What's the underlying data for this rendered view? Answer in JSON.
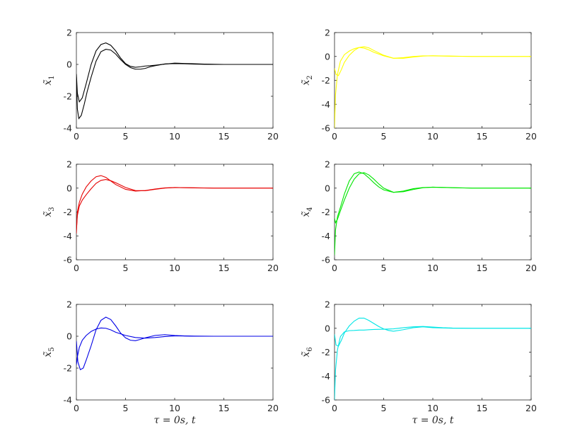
{
  "chart_data": [
    {
      "type": "line",
      "ylabel": "x̃",
      "ylabel_subscript": "1",
      "xlabel": "",
      "xlim": [
        0,
        20
      ],
      "ylim": [
        -4,
        2
      ],
      "xticks": [
        "0",
        "5",
        "10",
        "15",
        "20"
      ],
      "yticks": [
        "-4",
        "-2",
        "0",
        "2"
      ],
      "color": "#000000",
      "series": [
        {
          "x": [
            0,
            0.1,
            0.25,
            0.5,
            0.8,
            1.1,
            1.5,
            2,
            2.5,
            3,
            3.5,
            4,
            4.5,
            5,
            5.5,
            6,
            6.5,
            7,
            7.5,
            8,
            9,
            10,
            11,
            12,
            13,
            14,
            15,
            17,
            20
          ],
          "y": [
            -0.8,
            -2.8,
            -3.4,
            -3.2,
            -2.5,
            -1.7,
            -0.8,
            0.2,
            0.8,
            0.95,
            0.9,
            0.65,
            0.3,
            0,
            -0.2,
            -0.3,
            -0.3,
            -0.25,
            -0.15,
            -0.08,
            0.03,
            0.05,
            0.04,
            0.02,
            0.01,
            0,
            0,
            0,
            0
          ]
        },
        {
          "x": [
            0,
            0.1,
            0.3,
            0.6,
            1,
            1.5,
            2,
            2.5,
            3,
            3.5,
            4,
            4.5,
            5,
            5.5,
            6,
            6.5,
            7,
            7.5,
            8,
            9,
            10,
            11,
            12,
            13,
            14,
            15,
            17,
            20
          ],
          "y": [
            -0.6,
            -1.8,
            -2.35,
            -2.1,
            -1.2,
            0,
            0.85,
            1.25,
            1.35,
            1.2,
            0.85,
            0.4,
            0.05,
            -0.12,
            -0.18,
            -0.15,
            -0.1,
            -0.08,
            -0.05,
            0.02,
            0.08,
            0.06,
            0.04,
            0.02,
            0.01,
            0,
            0,
            0
          ]
        }
      ]
    },
    {
      "type": "line",
      "ylabel": "x̃",
      "ylabel_subscript": "2",
      "xlabel": "",
      "xlim": [
        0,
        20
      ],
      "ylim": [
        -6,
        2
      ],
      "xticks": [
        "0",
        "5",
        "10",
        "15",
        "20"
      ],
      "yticks": [
        "-6",
        "-4",
        "-2",
        "0",
        "2"
      ],
      "color": "#ffff00",
      "series": [
        {
          "x": [
            0,
            0.1,
            0.3,
            0.6,
            1,
            1.5,
            2,
            2.5,
            3,
            3.5,
            4,
            5,
            6,
            7,
            8,
            9,
            10,
            12,
            14,
            17,
            20
          ],
          "y": [
            -6,
            -3.2,
            -1.5,
            -0.4,
            0.15,
            0.45,
            0.65,
            0.75,
            0.7,
            0.55,
            0.35,
            0.05,
            -0.15,
            -0.1,
            0,
            0.05,
            0.05,
            0.02,
            0,
            0,
            0
          ]
        },
        {
          "x": [
            0,
            0.15,
            0.4,
            0.7,
            1,
            1.5,
            2,
            2.5,
            3,
            3.5,
            4,
            5,
            6,
            7,
            8,
            9,
            10,
            12,
            14,
            17,
            20
          ],
          "y": [
            -1,
            -1.5,
            -1.6,
            -1.1,
            -0.5,
            0.1,
            0.5,
            0.75,
            0.82,
            0.72,
            0.5,
            0.1,
            -0.15,
            -0.15,
            -0.05,
            0.03,
            0.06,
            0.03,
            0,
            0,
            0
          ]
        }
      ]
    },
    {
      "type": "line",
      "ylabel": "x̃",
      "ylabel_subscript": "3",
      "xlabel": "",
      "xlim": [
        0,
        20
      ],
      "ylim": [
        -6,
        2
      ],
      "xticks": [
        "0",
        "5",
        "10",
        "15",
        "20"
      ],
      "yticks": [
        "-6",
        "-4",
        "-2",
        "0",
        "2"
      ],
      "color": "#e60000",
      "series": [
        {
          "x": [
            0,
            0.1,
            0.3,
            0.6,
            1,
            1.5,
            2,
            2.5,
            3,
            3.5,
            4,
            5,
            6,
            7,
            8,
            9,
            10,
            12,
            14,
            17,
            20
          ],
          "y": [
            -3.8,
            -2,
            -1.2,
            -0.5,
            0.1,
            0.6,
            0.95,
            1.05,
            0.9,
            0.6,
            0.3,
            -0.1,
            -0.25,
            -0.2,
            -0.08,
            0.02,
            0.05,
            0.02,
            0,
            0,
            0
          ]
        },
        {
          "x": [
            0,
            0.1,
            0.3,
            0.6,
            1,
            1.5,
            2,
            2.5,
            3,
            3.5,
            4,
            5,
            6,
            7,
            8,
            9,
            10,
            12,
            14,
            17,
            20
          ],
          "y": [
            -3.5,
            -2.3,
            -1.5,
            -1,
            -0.55,
            -0.05,
            0.4,
            0.65,
            0.72,
            0.62,
            0.45,
            0.05,
            -0.2,
            -0.22,
            -0.1,
            0,
            0.05,
            0.03,
            0,
            0,
            0
          ]
        }
      ]
    },
    {
      "type": "line",
      "ylabel": "x̃",
      "ylabel_subscript": "4",
      "xlabel": "",
      "xlim": [
        0,
        20
      ],
      "ylim": [
        -6,
        2
      ],
      "xticks": [
        "0",
        "5",
        "10",
        "15",
        "20"
      ],
      "yticks": [
        "-6",
        "-4",
        "-2",
        "0",
        "2"
      ],
      "color": "#00e600",
      "series": [
        {
          "x": [
            0,
            0.1,
            0.3,
            0.6,
            1,
            1.5,
            2,
            2.5,
            3,
            3.5,
            4,
            4.5,
            5,
            6,
            7,
            8,
            9,
            10,
            12,
            14,
            17,
            20
          ],
          "y": [
            -5.6,
            -3.5,
            -2.4,
            -1.6,
            -0.5,
            0.6,
            1.2,
            1.35,
            1.2,
            0.85,
            0.45,
            0.1,
            -0.15,
            -0.35,
            -0.25,
            -0.05,
            0.05,
            0.08,
            0.03,
            0,
            0,
            0
          ]
        },
        {
          "x": [
            0,
            0.1,
            0.3,
            0.6,
            1,
            1.5,
            2,
            2.5,
            3,
            3.5,
            4,
            4.5,
            5,
            6,
            7,
            8,
            9,
            10,
            12,
            14,
            17,
            20
          ],
          "y": [
            -2.5,
            -2.9,
            -2.6,
            -1.9,
            -1,
            0,
            0.75,
            1.2,
            1.3,
            1.1,
            0.75,
            0.35,
            0,
            -0.35,
            -0.3,
            -0.12,
            0.03,
            0.08,
            0.04,
            0,
            0,
            0
          ]
        }
      ]
    },
    {
      "type": "line",
      "ylabel": "x̃",
      "ylabel_subscript": "5",
      "xlabel": "τ = 0s, t",
      "xlim": [
        0,
        20
      ],
      "ylim": [
        -4,
        2
      ],
      "xticks": [
        "0",
        "5",
        "10",
        "15",
        "20"
      ],
      "yticks": [
        "-4",
        "-2",
        "0",
        "2"
      ],
      "color": "#0000e6",
      "series": [
        {
          "x": [
            0,
            0.15,
            0.4,
            0.7,
            1,
            1.5,
            2,
            2.5,
            3,
            3.5,
            4,
            4.5,
            5,
            5.5,
            6,
            6.5,
            7,
            8,
            9,
            10,
            11,
            12,
            14,
            17,
            20
          ],
          "y": [
            -0.3,
            -1.6,
            -2.1,
            -2,
            -1.5,
            -0.6,
            0.4,
            1,
            1.2,
            1.05,
            0.65,
            0.2,
            -0.1,
            -0.25,
            -0.28,
            -0.2,
            -0.1,
            0.05,
            0.1,
            0.05,
            0.02,
            0,
            0,
            0,
            0
          ]
        },
        {
          "x": [
            0,
            0.1,
            0.3,
            0.6,
            1,
            1.5,
            2,
            2.5,
            3,
            3.5,
            4,
            5,
            6,
            7,
            8,
            9,
            10,
            12,
            14,
            17,
            20
          ],
          "y": [
            -1.8,
            -1.3,
            -0.7,
            -0.25,
            0.05,
            0.3,
            0.45,
            0.52,
            0.5,
            0.4,
            0.25,
            0.05,
            -0.08,
            -0.12,
            -0.08,
            -0.02,
            0.02,
            0.01,
            0,
            0,
            0
          ]
        }
      ]
    },
    {
      "type": "line",
      "ylabel": "x̃",
      "ylabel_subscript": "6",
      "xlabel": "τ = 0s, t",
      "xlim": [
        0,
        20
      ],
      "ylim": [
        -6,
        2
      ],
      "xticks": [
        "0",
        "5",
        "10",
        "15",
        "20"
      ],
      "yticks": [
        "-6",
        "-4",
        "-2",
        "0",
        "2"
      ],
      "color": "#00e6e6",
      "series": [
        {
          "x": [
            0,
            0.1,
            0.3,
            0.6,
            1,
            1.5,
            2,
            2.5,
            3,
            3.5,
            4,
            5,
            6,
            7,
            8,
            9,
            10,
            11,
            12,
            14,
            17,
            20
          ],
          "y": [
            -6,
            -3.5,
            -1.8,
            -0.7,
            -0.3,
            -0.2,
            -0.18,
            -0.15,
            -0.15,
            -0.12,
            -0.1,
            -0.08,
            -0.05,
            0.05,
            0.12,
            0.15,
            0.1,
            0.05,
            0.02,
            0,
            0,
            0
          ]
        },
        {
          "x": [
            0,
            0.15,
            0.4,
            0.7,
            1,
            1.5,
            2,
            2.5,
            3,
            3.5,
            4,
            4.5,
            5,
            5.5,
            6,
            7,
            8,
            9,
            10,
            12,
            14,
            17,
            20
          ],
          "y": [
            -0.5,
            -1.4,
            -1.5,
            -1,
            -0.4,
            0.2,
            0.6,
            0.85,
            0.85,
            0.65,
            0.4,
            0.15,
            -0.05,
            -0.18,
            -0.25,
            -0.12,
            0.05,
            0.12,
            0.05,
            0,
            0,
            0,
            0
          ]
        }
      ]
    }
  ]
}
